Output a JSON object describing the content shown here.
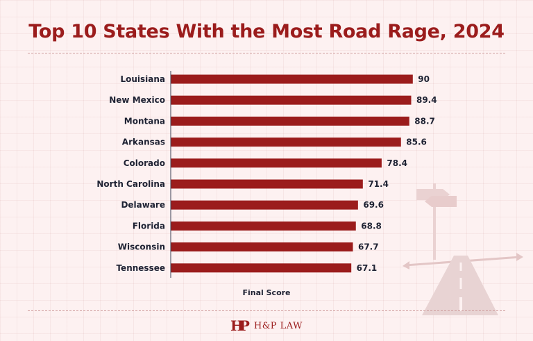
{
  "title": "Top 10 States With the Most Road Rage, 2024",
  "footer": {
    "brand": "H&P LAW",
    "logo_mark": "HP"
  },
  "colors": {
    "bar": "#9b1c1c",
    "title": "#9b1c1c",
    "text": "#1e2233",
    "background": "#fdf1f1"
  },
  "decoration": {
    "icon": "road-signpost-icon"
  },
  "chart_data": {
    "type": "bar",
    "orientation": "horizontal",
    "title": "Top 10 States With the Most Road Rage, 2024",
    "xlabel": "Final Score",
    "ylabel": "",
    "xlim": [
      0,
      100
    ],
    "grid": false,
    "legend": "none",
    "categories": [
      "Louisiana",
      "New Mexico",
      "Montana",
      "Arkansas",
      "Colorado",
      "North Carolina",
      "Delaware",
      "Florida",
      "Wisconsin",
      "Tennessee"
    ],
    "values": [
      90,
      89.4,
      88.7,
      85.6,
      78.4,
      71.4,
      69.6,
      68.8,
      67.7,
      67.1
    ],
    "value_labels": [
      "90",
      "89.4",
      "88.7",
      "85.6",
      "78.4",
      "71.4",
      "69.6",
      "68.8",
      "67.7",
      "67.1"
    ]
  }
}
